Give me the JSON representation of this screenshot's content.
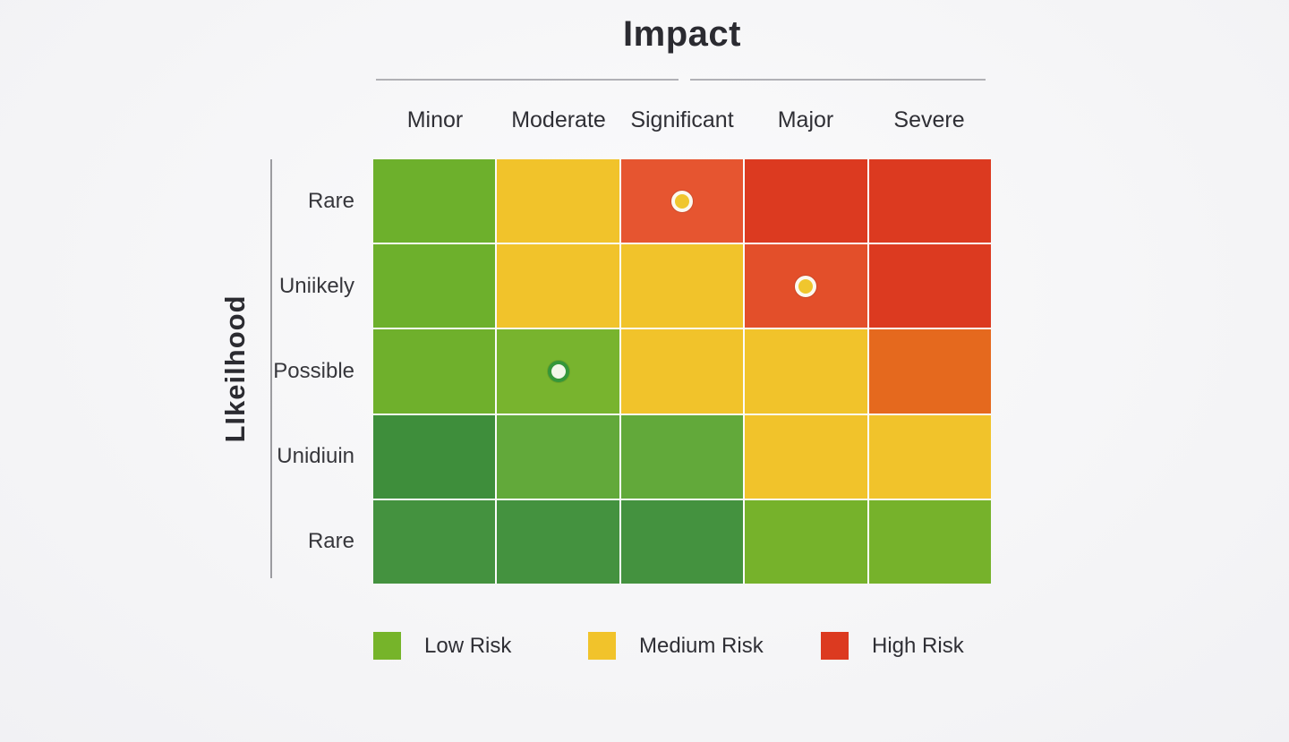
{
  "chart_data": {
    "type": "heatmap",
    "title": "Impact",
    "x_axis_label": "Impact",
    "y_axis_label": "LIkeilhood",
    "legend_position": "bottom",
    "grid_lines": "white",
    "columns": [
      "Minor",
      "Moderate",
      "Significant",
      "Major",
      "Severe"
    ],
    "rows": [
      "Rare",
      "Uniikely",
      "Possible",
      "Unidiuin",
      "Rare"
    ],
    "cell_colors": [
      [
        "#6db02c",
        "#f1c32b",
        "#e65530",
        "#dc3a20",
        "#dc3a20"
      ],
      [
        "#6db02c",
        "#f1c32b",
        "#f1c32b",
        "#e34f2a",
        "#dc3a20"
      ],
      [
        "#6fb02c",
        "#78b42e",
        "#f1c32b",
        "#f1c32b",
        "#e5691e"
      ],
      [
        "#3e8e3b",
        "#62a93a",
        "#62a93a",
        "#f1c32b",
        "#f1c32b"
      ],
      [
        "#44923f",
        "#44923f",
        "#44923f",
        "#76b22b",
        "#76b22b"
      ]
    ],
    "markers": [
      {
        "row": 0,
        "col": 2,
        "row_label": "Rare",
        "col_label": "Significant",
        "fill": "#f0c62e",
        "ring": "#fcf9f0"
      },
      {
        "row": 1,
        "col": 3,
        "row_label": "Uniikely",
        "col_label": "Major",
        "fill": "#f0c62e",
        "ring": "#fcf9f0"
      },
      {
        "row": 2,
        "col": 1,
        "row_label": "Possible",
        "col_label": "Moderate",
        "fill": "#f3f7ea",
        "ring": "#35973a"
      }
    ],
    "legend": [
      {
        "label": "Low Risk",
        "color": "#76b42a"
      },
      {
        "label": "Medium Risk",
        "color": "#f1c32b"
      },
      {
        "label": "High Risk",
        "color": "#dc3a20"
      }
    ]
  }
}
